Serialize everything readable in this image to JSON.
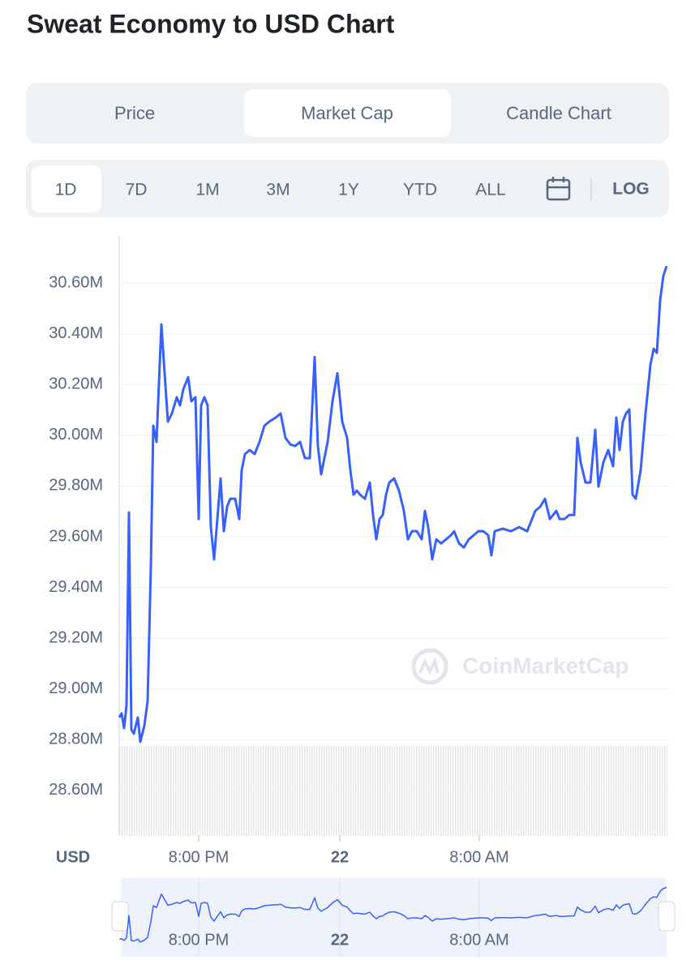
{
  "header": {
    "title": "Sweat Economy to USD Chart"
  },
  "tabs": {
    "items": [
      "Price",
      "Market Cap",
      "Candle Chart"
    ],
    "selected": 1
  },
  "ranges": {
    "items": [
      "1D",
      "7D",
      "1M",
      "3M",
      "1Y",
      "YTD",
      "ALL"
    ],
    "selected": 0,
    "log_button": "LOG"
  },
  "chart_data": {
    "type": "line",
    "currency_label": "USD",
    "watermark": "CoinMarketCap",
    "x": [
      0,
      3,
      6,
      9,
      12,
      15,
      18,
      23,
      26,
      31,
      35,
      39,
      42,
      46,
      52,
      56,
      60,
      65,
      71,
      75,
      79,
      85,
      89,
      94,
      98,
      101,
      105,
      109,
      113,
      117,
      121,
      125,
      129,
      133,
      137,
      143,
      148,
      151,
      155,
      161,
      167,
      173,
      179,
      185,
      193,
      199,
      205,
      211,
      217,
      223,
      229,
      235,
      241,
      245,
      249,
      253,
      257,
      263,
      269,
      275,
      281,
      285,
      289,
      293,
      297,
      303,
      309,
      313,
      317,
      321,
      325,
      329,
      333,
      339,
      345,
      351,
      356,
      361,
      367,
      373,
      377,
      381,
      386,
      391,
      397,
      403,
      409,
      413,
      419,
      425,
      431,
      437,
      443,
      449,
      455,
      459,
      463,
      473,
      483,
      493,
      503,
      509,
      513,
      519,
      525,
      531,
      539,
      543,
      549,
      555,
      561,
      565,
      569,
      575,
      581,
      587,
      591,
      597,
      603,
      609,
      613,
      617,
      621,
      625,
      629,
      633,
      637,
      643,
      649,
      655,
      659,
      663,
      667,
      671,
      675
    ],
    "series": [
      {
        "color": "#3861fb",
        "values": [
          28888000,
          28904000,
          28846000,
          28935000,
          29696000,
          28840000,
          28824000,
          28888000,
          28792000,
          28856000,
          28951000,
          29479000,
          30038000,
          29974000,
          30437000,
          30245000,
          30054000,
          30086000,
          30150000,
          30118000,
          30181000,
          30229000,
          30134000,
          30150000,
          29670000,
          30118000,
          30150000,
          30118000,
          29638000,
          29511000,
          29670000,
          29830000,
          29622000,
          29718000,
          29750000,
          29750000,
          29670000,
          29862000,
          29926000,
          29942000,
          29926000,
          29974000,
          30038000,
          30054000,
          30070000,
          30086000,
          29990000,
          29964000,
          29958000,
          29974000,
          29910000,
          29910000,
          30309000,
          29958000,
          29846000,
          29910000,
          29974000,
          30134000,
          30245000,
          30054000,
          29990000,
          29862000,
          29766000,
          29782000,
          29766000,
          29750000,
          29814000,
          29686000,
          29590000,
          29670000,
          29686000,
          29766000,
          29814000,
          29830000,
          29782000,
          29702000,
          29590000,
          29622000,
          29622000,
          29590000,
          29702000,
          29638000,
          29511000,
          29590000,
          29574000,
          29590000,
          29606000,
          29622000,
          29574000,
          29558000,
          29590000,
          29606000,
          29622000,
          29622000,
          29606000,
          29527000,
          29622000,
          29632000,
          29622000,
          29638000,
          29622000,
          29670000,
          29702000,
          29718000,
          29750000,
          29670000,
          29702000,
          29670000,
          29670000,
          29686000,
          29686000,
          29990000,
          29894000,
          29814000,
          29814000,
          30022000,
          29798000,
          29894000,
          29942000,
          29878000,
          30070000,
          29942000,
          30054000,
          30086000,
          30102000,
          29766000,
          29750000,
          29862000,
          30086000,
          30277000,
          30341000,
          30325000,
          30533000,
          30629000,
          30667000
        ]
      }
    ],
    "xlim": [
      0,
      675
    ],
    "xticks": [
      {
        "value": 98,
        "label": "8:00 PM"
      },
      {
        "value": 272,
        "label": "22"
      },
      {
        "value": 444,
        "label": "8:00 AM"
      }
    ],
    "ylim": [
      28424000,
      30789000
    ],
    "yticks": [
      {
        "value": 28600000,
        "label": "28.60M"
      },
      {
        "value": 28800000,
        "label": "28.80M"
      },
      {
        "value": 29000000,
        "label": "29.00M"
      },
      {
        "value": 29200000,
        "label": "29.20M"
      },
      {
        "value": 29400000,
        "label": "29.40M"
      },
      {
        "value": 29600000,
        "label": "29.60M"
      },
      {
        "value": 29800000,
        "label": "29.80M"
      },
      {
        "value": 30000000,
        "label": "30.00M"
      },
      {
        "value": 30200000,
        "label": "30.20M"
      },
      {
        "value": 30400000,
        "label": "30.40M"
      },
      {
        "value": 30600000,
        "label": "30.60M"
      }
    ],
    "grid": true
  }
}
